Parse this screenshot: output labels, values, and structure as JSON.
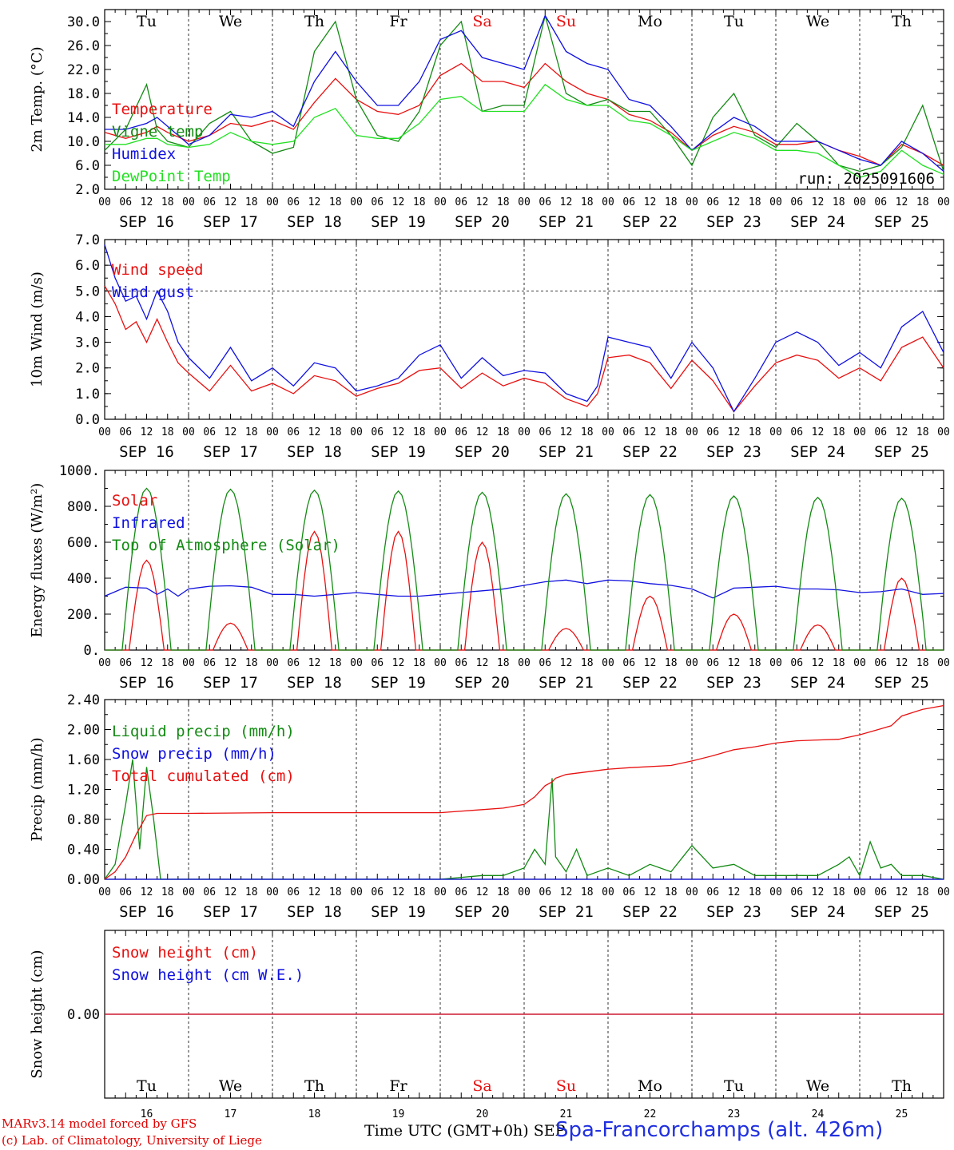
{
  "footer": {
    "model": "MARv3.14 model forced by GFS",
    "credit": "(c) Lab. of Climatology, University of Liege",
    "xaxis_title": "Time UTC (GMT+0h) SEP",
    "station": "Spa-Francorchamps (alt. 426m)"
  },
  "hour_ticks": [
    "00",
    "06",
    "12",
    "18"
  ],
  "last_hour_tick": "00",
  "dates": [
    "SEP 16",
    "SEP 17",
    "SEP 18",
    "SEP 19",
    "SEP 20",
    "SEP 21",
    "SEP 22",
    "SEP 23",
    "SEP 24",
    "SEP 25"
  ],
  "days": [
    "Tu",
    "We",
    "Th",
    "Fr",
    "Sa",
    "Su",
    "Mo",
    "Tu",
    "We",
    "Th"
  ],
  "day_numbers": [
    "16",
    "17",
    "18",
    "19",
    "20",
    "21",
    "22",
    "23",
    "24",
    "25"
  ],
  "weekend_days": [
    4,
    5
  ],
  "colors": {
    "red": "#e81010",
    "blue": "#1010e0",
    "darkgreen": "#138a13",
    "lightgreen": "#22e022",
    "black": "#000000"
  },
  "chart_data": [
    {
      "type": "line",
      "ylabel": "2m Temp. (°C)",
      "ylim": [
        2.0,
        32.0
      ],
      "yticks": [
        2.0,
        6.0,
        10.0,
        14.0,
        18.0,
        22.0,
        26.0,
        30.0
      ],
      "ytick_labels": [
        "2.0",
        "6.0",
        "10.0",
        "14.0",
        "18.0",
        "22.0",
        "26.0",
        "30.0"
      ],
      "annotation": "run: 2025091606",
      "x_unit": "hours since SEP 16 00 UTC",
      "series": [
        {
          "name": "Temperature",
          "color": "red",
          "x": [
            0,
            6,
            12,
            15,
            18,
            24,
            30,
            36,
            42,
            48,
            54,
            60,
            66,
            72,
            78,
            84,
            90,
            96,
            102,
            108,
            114,
            120,
            126,
            132,
            138,
            144,
            150,
            156,
            162,
            168,
            174,
            180,
            186,
            192,
            198,
            204,
            210,
            216,
            222,
            228,
            234,
            240
          ],
          "y": [
            11.5,
            10.5,
            11.5,
            12.5,
            11.5,
            10,
            11,
            13,
            12.5,
            13.5,
            12,
            16.5,
            20.5,
            17,
            15,
            14.5,
            16,
            21,
            23,
            20,
            20,
            19,
            23,
            20,
            18,
            17,
            14.5,
            13.5,
            11.5,
            8.5,
            11,
            12.5,
            11.5,
            9.5,
            9.5,
            10,
            8.5,
            7.5,
            6,
            9.5,
            8,
            6
          ]
        },
        {
          "name": "Vigne temp",
          "color": "darkgreen",
          "x": [
            0,
            6,
            12,
            15,
            18,
            24,
            30,
            36,
            42,
            48,
            54,
            60,
            66,
            72,
            78,
            84,
            90,
            96,
            102,
            108,
            114,
            120,
            126,
            132,
            138,
            144,
            150,
            156,
            162,
            168,
            174,
            180,
            186,
            192,
            198,
            204,
            210,
            216,
            222,
            228,
            234,
            240
          ],
          "y": [
            8.5,
            12,
            19.5,
            12,
            10,
            9,
            13,
            15,
            10,
            8,
            9,
            25,
            30,
            17,
            11,
            10,
            15,
            26,
            30,
            15,
            16,
            16,
            31,
            18,
            16,
            17,
            15,
            15,
            11,
            6,
            14,
            18,
            11,
            9,
            13,
            10,
            6,
            5,
            6,
            9,
            16,
            5
          ]
        },
        {
          "name": "Humidex",
          "color": "blue",
          "x": [
            0,
            6,
            12,
            15,
            18,
            24,
            30,
            36,
            42,
            48,
            54,
            60,
            66,
            72,
            78,
            84,
            90,
            96,
            102,
            108,
            114,
            120,
            126,
            132,
            138,
            144,
            150,
            156,
            162,
            168,
            174,
            180,
            186,
            192,
            198,
            204,
            210,
            216,
            222,
            228,
            234,
            240
          ],
          "y": [
            12,
            12,
            13,
            14,
            12.5,
            9.5,
            11,
            14.5,
            14,
            15,
            12.5,
            20,
            25,
            20,
            16,
            16,
            20,
            27,
            28.5,
            24,
            23,
            22,
            31,
            25,
            23,
            22,
            17,
            16,
            12.5,
            8.5,
            11.5,
            14,
            12.5,
            10,
            10,
            10,
            8.5,
            7,
            6,
            10,
            8,
            5
          ]
        },
        {
          "name": "DewPoint Temp",
          "color": "lightgreen",
          "x": [
            0,
            6,
            12,
            15,
            18,
            24,
            30,
            36,
            42,
            48,
            54,
            60,
            66,
            72,
            78,
            84,
            90,
            96,
            102,
            108,
            114,
            120,
            126,
            132,
            138,
            144,
            150,
            156,
            162,
            168,
            174,
            180,
            186,
            192,
            198,
            204,
            210,
            216,
            222,
            228,
            234,
            240
          ],
          "y": [
            9.5,
            9.5,
            10.5,
            10.5,
            9.5,
            9,
            9.5,
            11.5,
            10,
            9.5,
            10,
            14,
            15.5,
            11,
            10.5,
            10.5,
            13,
            17,
            17.5,
            15,
            15,
            15,
            19.5,
            17,
            16,
            16,
            13.5,
            13,
            11,
            8.5,
            10,
            11.5,
            10.5,
            8.5,
            8.5,
            8,
            6,
            4,
            5,
            8.5,
            6,
            4.5
          ]
        }
      ]
    },
    {
      "type": "line",
      "ylabel": "10m Wind (m/s)",
      "ylim": [
        0.0,
        7.0
      ],
      "yticks": [
        0,
        1,
        2,
        3,
        4,
        5,
        6,
        7
      ],
      "ytick_labels": [
        "0.0",
        "1.0",
        "2.0",
        "3.0",
        "4.0",
        "5.0",
        "6.0",
        "7.0"
      ],
      "hline": 5.0,
      "x_unit": "hours since SEP 16 00 UTC",
      "series": [
        {
          "name": "Wind speed",
          "color": "red",
          "x": [
            0,
            3,
            6,
            9,
            12,
            15,
            18,
            21,
            24,
            30,
            36,
            42,
            48,
            54,
            60,
            66,
            72,
            78,
            84,
            90,
            96,
            102,
            108,
            114,
            120,
            126,
            132,
            138,
            141,
            144,
            150,
            156,
            162,
            168,
            174,
            180,
            186,
            192,
            198,
            204,
            210,
            216,
            222,
            228,
            234,
            240
          ],
          "y": [
            5.2,
            4.5,
            3.5,
            3.8,
            3.0,
            3.9,
            3.0,
            2.2,
            1.8,
            1.1,
            2.1,
            1.1,
            1.4,
            1.0,
            1.7,
            1.5,
            0.9,
            1.2,
            1.4,
            1.9,
            2.0,
            1.2,
            1.8,
            1.3,
            1.6,
            1.4,
            0.8,
            0.5,
            1.0,
            2.4,
            2.5,
            2.2,
            1.2,
            2.3,
            1.5,
            0.3,
            1.3,
            2.2,
            2.5,
            2.3,
            1.6,
            2.0,
            1.5,
            2.8,
            3.2,
            2.0
          ]
        },
        {
          "name": "Wind gust",
          "color": "blue",
          "x": [
            0,
            3,
            6,
            9,
            12,
            15,
            18,
            21,
            24,
            30,
            36,
            42,
            48,
            54,
            60,
            66,
            72,
            78,
            84,
            90,
            96,
            102,
            108,
            114,
            120,
            126,
            132,
            138,
            141,
            144,
            150,
            156,
            162,
            168,
            174,
            180,
            186,
            192,
            198,
            204,
            210,
            216,
            222,
            228,
            234,
            240
          ],
          "y": [
            6.8,
            5.5,
            4.6,
            4.8,
            3.9,
            5.0,
            4.2,
            3.0,
            2.4,
            1.6,
            2.8,
            1.5,
            2.0,
            1.3,
            2.2,
            2.0,
            1.1,
            1.3,
            1.6,
            2.5,
            2.9,
            1.6,
            2.4,
            1.7,
            1.9,
            1.8,
            1.0,
            0.7,
            1.3,
            3.2,
            3.0,
            2.8,
            1.6,
            3.0,
            2.0,
            0.3,
            1.6,
            3.0,
            3.4,
            3.0,
            2.1,
            2.6,
            2.0,
            3.6,
            4.2,
            2.6
          ]
        }
      ]
    },
    {
      "type": "line",
      "ylabel": "Energy fluxes (W/m²)",
      "ylim": [
        0,
        1000
      ],
      "yticks": [
        0,
        200,
        400,
        600,
        800,
        1000
      ],
      "ytick_labels": [
        "0.",
        "200.",
        "400.",
        "600.",
        "800.",
        "1000."
      ],
      "x_unit": "hours since SEP 16 00 UTC",
      "series": [
        {
          "name": "Solar",
          "color": "red",
          "daily_peak": [
            500,
            150,
            660,
            660,
            600,
            120,
            300,
            200,
            140,
            400
          ]
        },
        {
          "name": "Infrared",
          "color": "blue",
          "x": [
            0,
            6,
            12,
            15,
            18,
            21,
            24,
            30,
            36,
            42,
            48,
            54,
            60,
            66,
            72,
            78,
            84,
            90,
            96,
            102,
            108,
            114,
            120,
            126,
            132,
            138,
            144,
            150,
            156,
            162,
            168,
            174,
            180,
            186,
            192,
            198,
            204,
            210,
            216,
            222,
            228,
            234,
            240
          ],
          "y": [
            300,
            350,
            345,
            310,
            340,
            300,
            340,
            355,
            358,
            350,
            310,
            310,
            300,
            310,
            320,
            310,
            300,
            300,
            310,
            320,
            330,
            340,
            360,
            380,
            390,
            370,
            390,
            385,
            370,
            360,
            340,
            290,
            345,
            350,
            355,
            340,
            340,
            335,
            320,
            325,
            340,
            310,
            315
          ]
        },
        {
          "name": "Top of Atmosphere (Solar)",
          "color": "darkgreen",
          "daily_peak": [
            900,
            895,
            890,
            885,
            878,
            870,
            865,
            858,
            850,
            845
          ]
        }
      ]
    },
    {
      "type": "line",
      "ylabel": "Precip (mm/h)",
      "ylim": [
        0.0,
        2.4
      ],
      "yticks": [
        0.0,
        0.4,
        0.8,
        1.2,
        1.6,
        2.0,
        2.4
      ],
      "ytick_labels": [
        "0.00",
        "0.40",
        "0.80",
        "1.20",
        "1.60",
        "2.00",
        "2.40"
      ],
      "x_unit": "hours since SEP 16 00 UTC",
      "series": [
        {
          "name": "Liquid precip (mm/h)",
          "color": "darkgreen",
          "x": [
            0,
            3,
            6,
            8,
            10,
            12,
            14,
            16,
            18,
            24,
            96,
            108,
            114,
            120,
            123,
            126,
            128,
            129,
            132,
            135,
            138,
            144,
            150,
            156,
            162,
            168,
            174,
            180,
            186,
            192,
            198,
            204,
            210,
            213,
            216,
            219,
            222,
            225,
            228,
            234,
            240
          ],
          "y": [
            0,
            0.2,
            1.0,
            1.6,
            0.4,
            1.5,
            0.8,
            0,
            0,
            0,
            0,
            0.05,
            0.05,
            0.15,
            0.4,
            0.2,
            1.35,
            0.3,
            0.1,
            0.4,
            0.05,
            0.15,
            0.05,
            0.2,
            0.1,
            0.45,
            0.15,
            0.2,
            0.05,
            0.05,
            0.05,
            0.05,
            0.2,
            0.3,
            0.05,
            0.5,
            0.15,
            0.2,
            0.05,
            0.05,
            0
          ]
        },
        {
          "name": "Snow precip (mm/h)",
          "color": "blue",
          "x": [
            0,
            240
          ],
          "y": [
            0,
            0
          ]
        },
        {
          "name": "Total cumulated (cm)",
          "color": "red",
          "x": [
            0,
            3,
            6,
            9,
            12,
            15,
            18,
            24,
            48,
            72,
            96,
            108,
            114,
            120,
            123,
            126,
            128,
            129,
            132,
            144,
            150,
            162,
            168,
            174,
            180,
            186,
            192,
            198,
            204,
            210,
            216,
            222,
            225,
            228,
            234,
            240
          ],
          "y": [
            0,
            0.1,
            0.3,
            0.6,
            0.85,
            0.88,
            0.88,
            0.88,
            0.89,
            0.89,
            0.89,
            0.93,
            0.95,
            1.0,
            1.1,
            1.25,
            1.3,
            1.35,
            1.4,
            1.47,
            1.49,
            1.52,
            1.58,
            1.65,
            1.73,
            1.77,
            1.82,
            1.85,
            1.86,
            1.87,
            1.93,
            2.01,
            2.05,
            2.18,
            2.27,
            2.32
          ]
        }
      ]
    },
    {
      "type": "line",
      "ylabel": "Snow height (cm)",
      "ytick_labels": [
        "0.00"
      ],
      "x_unit": "hours since SEP 16 00 UTC",
      "series": [
        {
          "name": "Snow height (cm)",
          "color": "red",
          "x": [
            0,
            240
          ],
          "y": [
            0,
            0
          ]
        },
        {
          "name": "Snow height (cm W.E.)",
          "color": "blue",
          "x": [
            0,
            240
          ],
          "y": [
            0,
            0
          ]
        }
      ]
    }
  ]
}
